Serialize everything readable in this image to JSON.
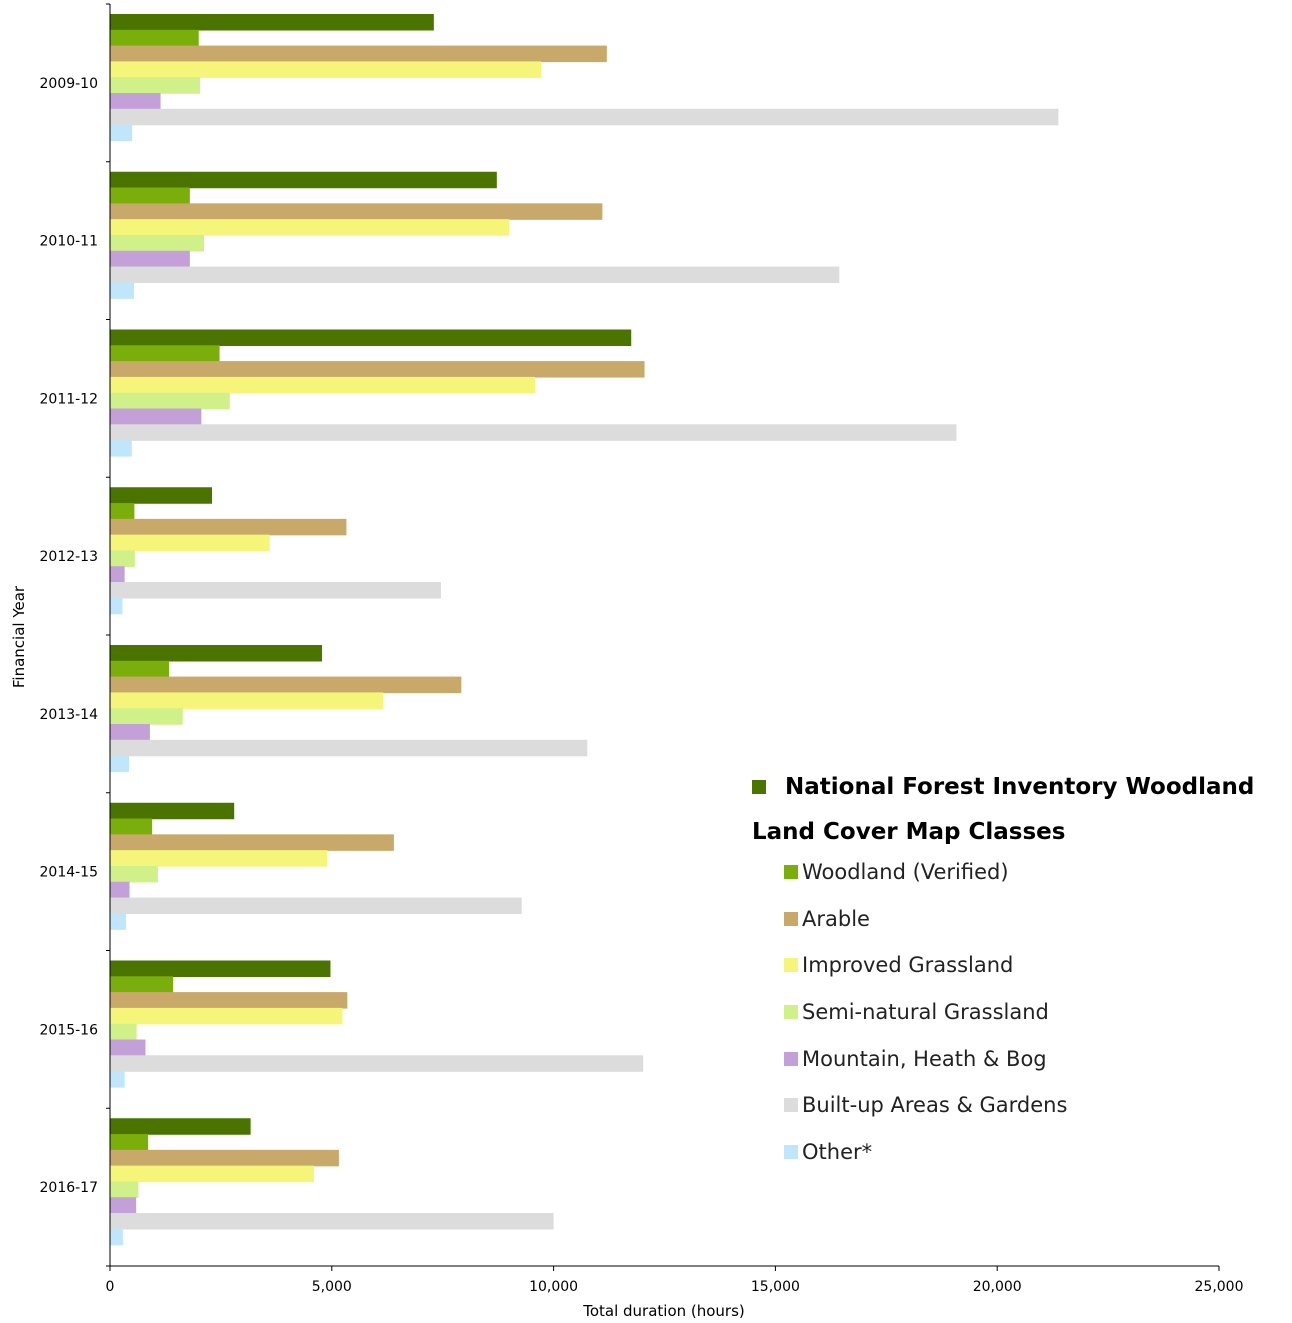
{
  "chart_data": {
    "type": "bar",
    "orientation": "horizontal",
    "categories": [
      "2009-10",
      "2010-11",
      "2011-12",
      "2012-13",
      "2013-14",
      "2014-15",
      "2015-16",
      "2016-17"
    ],
    "series": [
      {
        "name": "National Forest Inventory Woodland",
        "color": "#4a7300",
        "values": [
          7300,
          8720,
          11750,
          2300,
          4780,
          2800,
          4970,
          3170
        ]
      },
      {
        "name": "Woodland (Verified)",
        "color": "#7aae0a",
        "values": [
          2000,
          1800,
          2470,
          550,
          1330,
          950,
          1420,
          860
        ]
      },
      {
        "name": "Arable",
        "color": "#c8a96a",
        "values": [
          11200,
          11100,
          12050,
          5330,
          7920,
          6400,
          5350,
          5160
        ]
      },
      {
        "name": "Improved Grassland",
        "color": "#f5f57a",
        "values": [
          9720,
          9000,
          9580,
          3600,
          6160,
          4900,
          5240,
          4600
        ]
      },
      {
        "name": "Semi-natural Grassland",
        "color": "#d0f08a",
        "values": [
          2030,
          2120,
          2700,
          560,
          1640,
          1080,
          600,
          640
        ]
      },
      {
        "name": "Mountain, Heath & Bog",
        "color": "#c3a0d8",
        "values": [
          1140,
          1800,
          2060,
          330,
          900,
          440,
          800,
          590
        ]
      },
      {
        "name": "Built-up Areas & Gardens",
        "color": "#dcdcdc",
        "values": [
          21380,
          16440,
          19080,
          7460,
          10760,
          9280,
          12020,
          10000
        ]
      },
      {
        "name": "Other*",
        "color": "#bfe6fb",
        "values": [
          500,
          540,
          490,
          280,
          430,
          360,
          330,
          290
        ]
      }
    ],
    "xlabel": "Total duration (hours)",
    "ylabel": "Financial Year",
    "xlim": [
      0,
      25000
    ],
    "xticks": [
      0,
      5000,
      10000,
      15000,
      20000,
      25000
    ],
    "xtick_labels": [
      "0",
      "5,000",
      "10,000",
      "15,000",
      "20,000",
      "25,000"
    ],
    "grid": false,
    "legend_position": "bottom-right"
  },
  "legend": {
    "heading_primary": "National Forest Inventory Woodland",
    "heading_secondary": "Land Cover Map Classes",
    "items": [
      "Woodland (Verified)",
      "Arable",
      "Improved Grassland",
      "Semi-natural Grassland",
      "Mountain, Heath & Bog",
      "Built-up Areas & Gardens",
      "Other*"
    ]
  }
}
